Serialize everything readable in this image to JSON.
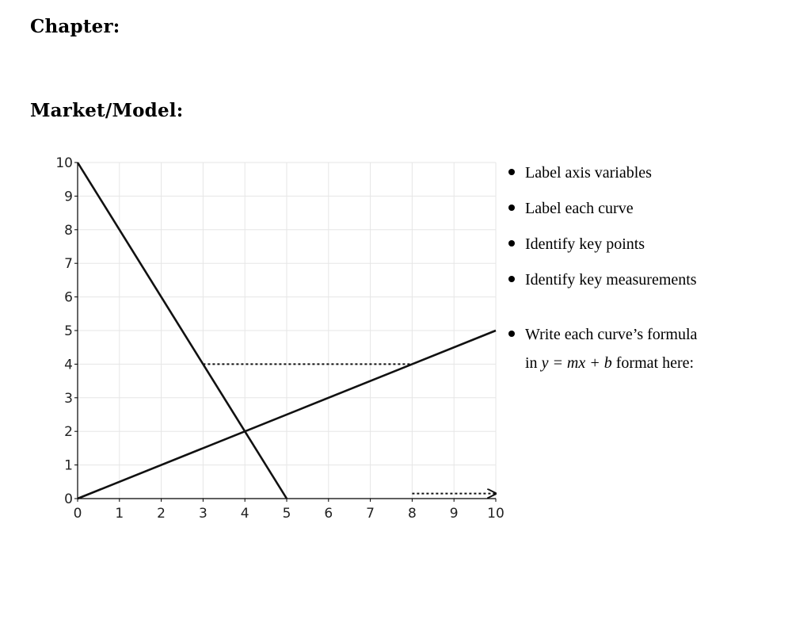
{
  "chapter_label": "Chapter:",
  "model_label": "Market/Model:",
  "bullets": [
    "Label axis variables",
    "Label each curve",
    "Identify key points",
    "Identify key measurements"
  ],
  "formula_bullet": {
    "line1": "Write each curve’s formula",
    "line2_prefix": "in ",
    "line2_math": "y = mx + b",
    "line2_suffix": " format here:"
  },
  "chart_data": {
    "type": "line",
    "title": "",
    "xlabel": "",
    "ylabel": "",
    "xlim": [
      0,
      10
    ],
    "ylim": [
      0,
      10
    ],
    "xticks": [
      0,
      1,
      2,
      3,
      4,
      5,
      6,
      7,
      8,
      9,
      10
    ],
    "yticks": [
      0,
      1,
      2,
      3,
      4,
      5,
      6,
      7,
      8,
      9,
      10
    ],
    "grid": true,
    "series": [
      {
        "points": [
          [
            0,
            10
          ],
          [
            5,
            0
          ]
        ],
        "style": "solid"
      },
      {
        "points": [
          [
            0,
            0
          ],
          [
            10,
            5
          ]
        ],
        "style": "solid"
      }
    ],
    "guides": [
      {
        "points": [
          [
            3,
            4
          ],
          [
            8,
            4
          ]
        ],
        "style": "dotted"
      },
      {
        "points": [
          [
            8,
            0.15
          ],
          [
            10,
            0.15
          ]
        ],
        "style": "dotted-arrow"
      }
    ],
    "line_color": "#111111",
    "grid_color": "#e6e6e6"
  }
}
